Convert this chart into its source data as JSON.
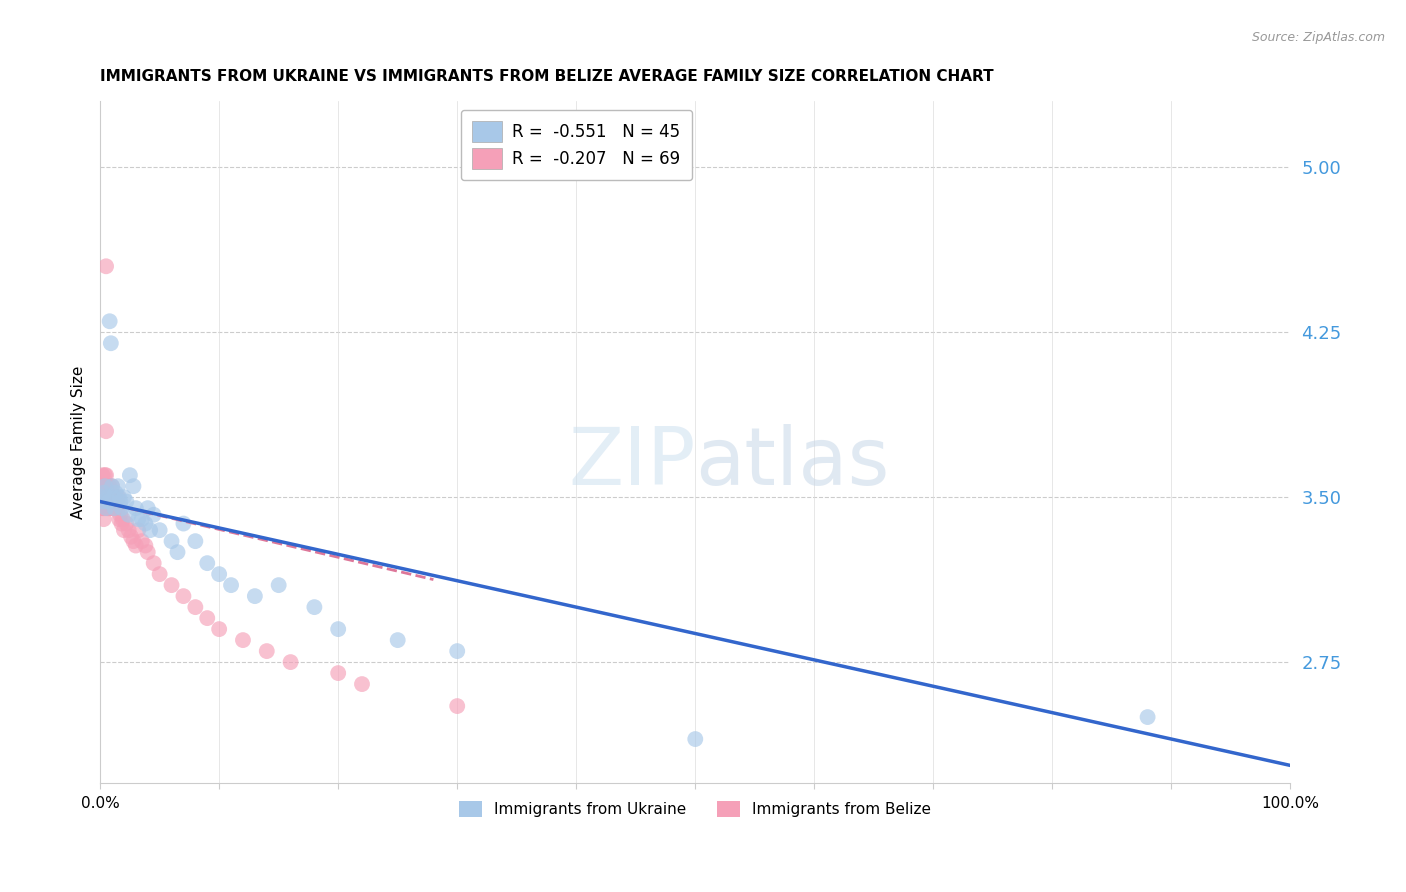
{
  "title": "IMMIGRANTS FROM UKRAINE VS IMMIGRANTS FROM BELIZE AVERAGE FAMILY SIZE CORRELATION CHART",
  "source": "Source: ZipAtlas.com",
  "ylabel": "Average Family Size",
  "right_yticks": [
    2.75,
    3.5,
    4.25,
    5.0
  ],
  "ylim": [
    2.2,
    5.3
  ],
  "xlim": [
    0.0,
    1.0
  ],
  "ukraine_color": "#a8c8e8",
  "belize_color": "#f5a0b8",
  "ukraine_line_color": "#3366cc",
  "belize_line_color": "#dd7799",
  "legend_ukraine": "R =  -0.551   N = 45",
  "legend_belize": "R =  -0.207   N = 69",
  "legend_label_ukraine": "Immigrants from Ukraine",
  "legend_label_belize": "Immigrants from Belize",
  "background_color": "#ffffff",
  "grid_color": "#cccccc",
  "right_axis_color": "#4499dd",
  "ukraine_scatter": {
    "x": [
      0.001,
      0.002,
      0.003,
      0.004,
      0.005,
      0.006,
      0.007,
      0.008,
      0.009,
      0.01,
      0.011,
      0.012,
      0.013,
      0.015,
      0.016,
      0.017,
      0.018,
      0.02,
      0.022,
      0.024,
      0.025,
      0.028,
      0.03,
      0.032,
      0.035,
      0.038,
      0.04,
      0.042,
      0.045,
      0.05,
      0.06,
      0.065,
      0.07,
      0.08,
      0.09,
      0.1,
      0.11,
      0.13,
      0.15,
      0.18,
      0.2,
      0.25,
      0.3,
      0.5,
      0.88
    ],
    "y": [
      3.5,
      3.48,
      3.52,
      3.55,
      3.45,
      3.5,
      3.48,
      4.3,
      4.2,
      3.55,
      3.5,
      3.45,
      3.52,
      3.55,
      3.5,
      3.48,
      3.45,
      3.5,
      3.48,
      3.42,
      3.6,
      3.55,
      3.45,
      3.4,
      3.4,
      3.38,
      3.45,
      3.35,
      3.42,
      3.35,
      3.3,
      3.25,
      3.38,
      3.3,
      3.2,
      3.15,
      3.1,
      3.05,
      3.1,
      3.0,
      2.9,
      2.85,
      2.8,
      2.4,
      2.5
    ]
  },
  "belize_scatter": {
    "x": [
      0.001,
      0.001,
      0.001,
      0.002,
      0.002,
      0.002,
      0.003,
      0.003,
      0.003,
      0.003,
      0.004,
      0.004,
      0.004,
      0.004,
      0.005,
      0.005,
      0.005,
      0.005,
      0.005,
      0.006,
      0.006,
      0.006,
      0.007,
      0.007,
      0.007,
      0.008,
      0.008,
      0.008,
      0.009,
      0.009,
      0.01,
      0.01,
      0.01,
      0.011,
      0.011,
      0.012,
      0.012,
      0.013,
      0.013,
      0.014,
      0.015,
      0.015,
      0.016,
      0.017,
      0.018,
      0.019,
      0.02,
      0.022,
      0.024,
      0.026,
      0.028,
      0.03,
      0.032,
      0.035,
      0.038,
      0.04,
      0.045,
      0.05,
      0.06,
      0.07,
      0.08,
      0.09,
      0.1,
      0.12,
      0.14,
      0.16,
      0.2,
      0.22,
      0.3
    ],
    "y": [
      3.55,
      3.5,
      3.45,
      3.6,
      3.5,
      3.45,
      3.55,
      3.5,
      3.45,
      3.4,
      3.6,
      3.55,
      3.5,
      3.45,
      4.55,
      3.8,
      3.6,
      3.55,
      3.5,
      3.55,
      3.5,
      3.45,
      3.55,
      3.5,
      3.45,
      3.55,
      3.5,
      3.45,
      3.5,
      3.45,
      3.55,
      3.5,
      3.45,
      3.5,
      3.45,
      3.5,
      3.45,
      3.5,
      3.45,
      3.48,
      3.5,
      3.45,
      3.4,
      3.42,
      3.38,
      3.4,
      3.35,
      3.38,
      3.35,
      3.32,
      3.3,
      3.28,
      3.35,
      3.3,
      3.28,
      3.25,
      3.2,
      3.15,
      3.1,
      3.05,
      3.0,
      2.95,
      2.9,
      2.85,
      2.8,
      2.75,
      2.7,
      2.65,
      2.55
    ]
  },
  "ukraine_line": {
    "x0": 0.0,
    "y0": 3.48,
    "x1": 1.0,
    "y1": 2.28
  },
  "belize_line": {
    "x0": 0.0,
    "y0": 3.48,
    "x1": 0.3,
    "y1": 3.1
  }
}
